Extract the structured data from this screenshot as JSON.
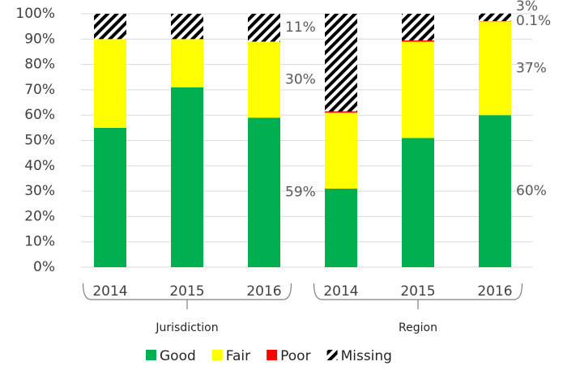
{
  "chart_data": {
    "type": "stacked-bar",
    "groups": [
      {
        "name": "Jurisdiction",
        "categories": [
          "2014",
          "2015",
          "2016"
        ]
      },
      {
        "name": "Region",
        "categories": [
          "2014",
          "2015",
          "2016"
        ]
      }
    ],
    "series": [
      {
        "name": "Good",
        "color": "#00b050",
        "values": [
          55,
          71,
          59,
          31,
          51,
          60
        ],
        "value_labels": [
          null,
          null,
          "59%",
          null,
          null,
          "60%"
        ]
      },
      {
        "name": "Fair",
        "color": "#ffff00",
        "values": [
          35,
          19,
          30,
          30,
          38,
          37
        ],
        "value_labels": [
          null,
          null,
          "30%",
          null,
          null,
          "37%"
        ]
      },
      {
        "name": "Poor",
        "color": "#ff0000",
        "values": [
          0,
          0,
          0,
          0.5,
          0.5,
          0.1
        ],
        "value_labels": [
          null,
          null,
          null,
          null,
          null,
          "0.1%"
        ]
      },
      {
        "name": "Missing",
        "color": "#000000",
        "pattern": "diagonal",
        "values": [
          10,
          10,
          11,
          38.5,
          10.5,
          3
        ],
        "value_labels": [
          null,
          null,
          "11%",
          null,
          null,
          "3%"
        ]
      }
    ],
    "ylim": [
      0,
      100
    ],
    "yticks": [
      {
        "value": 0,
        "label": "0%"
      },
      {
        "value": 10,
        "label": "10%"
      },
      {
        "value": 20,
        "label": "20%"
      },
      {
        "value": 30,
        "label": "30%"
      },
      {
        "value": 40,
        "label": "40%"
      },
      {
        "value": 50,
        "label": "50%"
      },
      {
        "value": 60,
        "label": "60%"
      },
      {
        "value": 70,
        "label": "70%"
      },
      {
        "value": 80,
        "label": "80%"
      },
      {
        "value": 90,
        "label": "90%"
      },
      {
        "value": 100,
        "label": "100%"
      }
    ],
    "grid": true,
    "legend": "bottom"
  }
}
